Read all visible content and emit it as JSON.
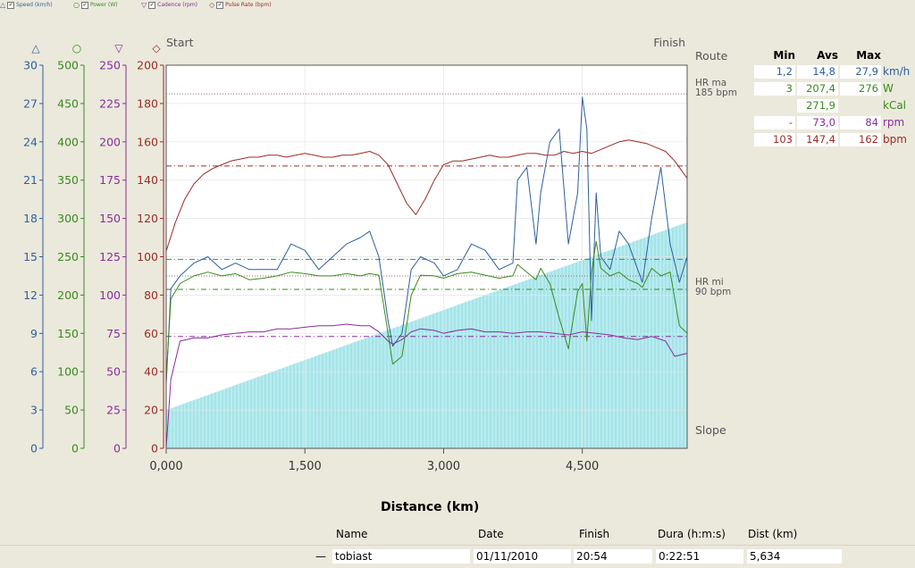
{
  "legend": [
    {
      "label": "Speed (km/h)",
      "color": "#2f5f9f",
      "symbol": "△"
    },
    {
      "label": "Power (W)",
      "color": "#3a8a1e",
      "symbol": "○"
    },
    {
      "label": "Cadence (rpm)",
      "color": "#8a2d9a",
      "symbol": "▽"
    },
    {
      "label": "Pulse Rate (bpm)",
      "color": "#9a2b26",
      "symbol": "◇"
    }
  ],
  "chart_data": {
    "type": "line",
    "xlabel": "Distance (km)",
    "x_ticks": [
      "0,000",
      "1,500",
      "3,000",
      "4,500"
    ],
    "x_tick_values": [
      0,
      1.5,
      3.0,
      4.5
    ],
    "xlim": [
      0,
      5.634
    ],
    "start_label": "Start",
    "finish_label": "Finish",
    "route_label": "Route",
    "slope_label": "Slope",
    "hr_max_label": "HR ma",
    "hr_max_value": "185 bpm",
    "hr_min_label": "HR mi",
    "hr_min_value": "90 bpm",
    "axes": [
      {
        "name": "speed",
        "unit": "km/h",
        "symbol": "△",
        "color": "#2f5f9f",
        "ticks": [
          "0",
          "3",
          "6",
          "9",
          "12",
          "15",
          "18",
          "21",
          "24",
          "27",
          "30"
        ],
        "ylim": [
          0,
          30
        ]
      },
      {
        "name": "power",
        "unit": "W",
        "symbol": "○",
        "color": "#3a8a1e",
        "ticks": [
          "0",
          "50",
          "100",
          "150",
          "200",
          "250",
          "300",
          "350",
          "400",
          "450",
          "500"
        ],
        "ylim": [
          0,
          500
        ]
      },
      {
        "name": "cadence",
        "unit": "rpm",
        "symbol": "▽",
        "color": "#8a2d9a",
        "ticks": [
          "0",
          "25",
          "50",
          "75",
          "100",
          "125",
          "150",
          "175",
          "200",
          "225",
          "250"
        ],
        "ylim": [
          0,
          250
        ]
      },
      {
        "name": "pulse",
        "unit": "bpm",
        "symbol": "◇",
        "color": "#9a2b26",
        "ticks": [
          "0",
          "20",
          "40",
          "60",
          "80",
          "100",
          "120",
          "140",
          "160",
          "180",
          "200"
        ],
        "ylim": [
          0,
          200
        ]
      }
    ],
    "series": [
      {
        "name": "Pulse Rate (bpm)",
        "color": "#9a2b26",
        "axis": "pulse",
        "x": [
          0,
          0.1,
          0.2,
          0.3,
          0.4,
          0.5,
          0.6,
          0.7,
          0.8,
          0.9,
          1.0,
          1.1,
          1.2,
          1.3,
          1.4,
          1.5,
          1.6,
          1.7,
          1.8,
          1.9,
          2.0,
          2.1,
          2.2,
          2.3,
          2.4,
          2.5,
          2.6,
          2.7,
          2.8,
          2.9,
          3.0,
          3.1,
          3.2,
          3.3,
          3.4,
          3.5,
          3.6,
          3.7,
          3.8,
          3.9,
          4.0,
          4.1,
          4.2,
          4.3,
          4.4,
          4.5,
          4.6,
          4.7,
          4.8,
          4.9,
          5.0,
          5.1,
          5.2,
          5.3,
          5.4,
          5.5,
          5.634
        ],
        "y": [
          103,
          118,
          130,
          138,
          143,
          146,
          148,
          150,
          151,
          152,
          152,
          153,
          153,
          152,
          153,
          154,
          153,
          152,
          152,
          153,
          153,
          154,
          155,
          153,
          148,
          138,
          128,
          122,
          130,
          140,
          148,
          150,
          150,
          151,
          152,
          153,
          152,
          152,
          153,
          154,
          154,
          153,
          153,
          155,
          154,
          155,
          154,
          156,
          158,
          160,
          161,
          160,
          159,
          157,
          155,
          150,
          141
        ]
      },
      {
        "name": "Speed (km/h)",
        "color": "#2f5f9f",
        "axis": "speed",
        "x": [
          0,
          0.05,
          0.15,
          0.3,
          0.45,
          0.6,
          0.75,
          0.9,
          1.05,
          1.2,
          1.35,
          1.5,
          1.65,
          1.8,
          1.95,
          2.1,
          2.2,
          2.3,
          2.4,
          2.45,
          2.55,
          2.65,
          2.75,
          2.9,
          3.0,
          3.15,
          3.3,
          3.45,
          3.6,
          3.75,
          3.8,
          3.9,
          4.0,
          4.05,
          4.15,
          4.25,
          4.35,
          4.45,
          4.5,
          4.55,
          4.6,
          4.65,
          4.7,
          4.8,
          4.9,
          5.0,
          5.1,
          5.15,
          5.25,
          5.35,
          5.45,
          5.55,
          5.634
        ],
        "y": [
          5,
          12.5,
          13.5,
          14.5,
          15,
          14,
          14.5,
          14,
          14,
          14,
          16,
          15.5,
          14,
          15,
          16,
          16.5,
          17,
          15,
          10,
          8,
          9,
          14,
          15,
          14.5,
          13.5,
          14,
          16,
          15.5,
          14,
          14.5,
          21,
          22,
          16,
          20,
          24,
          25,
          16,
          20,
          27.5,
          25,
          10,
          20,
          15,
          14,
          17,
          16,
          14,
          13,
          18,
          22,
          16,
          13,
          15
        ]
      },
      {
        "name": "Power (W)",
        "color": "#3a8a1e",
        "axis": "power",
        "x": [
          0,
          0.05,
          0.15,
          0.3,
          0.45,
          0.6,
          0.75,
          0.9,
          1.05,
          1.2,
          1.35,
          1.5,
          1.65,
          1.8,
          1.95,
          2.1,
          2.2,
          2.3,
          2.4,
          2.45,
          2.55,
          2.65,
          2.75,
          2.9,
          3.0,
          3.15,
          3.3,
          3.45,
          3.6,
          3.75,
          3.8,
          3.9,
          4.0,
          4.05,
          4.15,
          4.25,
          4.35,
          4.45,
          4.5,
          4.55,
          4.6,
          4.65,
          4.7,
          4.8,
          4.9,
          5.0,
          5.1,
          5.15,
          5.25,
          5.35,
          5.45,
          5.55,
          5.634
        ],
        "y": [
          90,
          195,
          215,
          225,
          230,
          225,
          228,
          220,
          222,
          225,
          230,
          228,
          225,
          225,
          228,
          225,
          228,
          226,
          150,
          110,
          120,
          200,
          226,
          225,
          222,
          228,
          230,
          226,
          222,
          225,
          240,
          230,
          220,
          235,
          215,
          170,
          130,
          205,
          215,
          140,
          230,
          270,
          235,
          225,
          230,
          220,
          215,
          210,
          235,
          225,
          230,
          160,
          150
        ]
      },
      {
        "name": "Cadence (rpm)",
        "color": "#8a2d9a",
        "axis": "cadence",
        "x": [
          0,
          0.05,
          0.15,
          0.3,
          0.45,
          0.6,
          0.75,
          0.9,
          1.05,
          1.2,
          1.35,
          1.5,
          1.65,
          1.8,
          1.95,
          2.1,
          2.2,
          2.3,
          2.4,
          2.45,
          2.55,
          2.65,
          2.75,
          2.9,
          3.0,
          3.15,
          3.3,
          3.45,
          3.6,
          3.75,
          3.9,
          4.05,
          4.2,
          4.35,
          4.5,
          4.65,
          4.8,
          4.95,
          5.1,
          5.25,
          5.4,
          5.5,
          5.634
        ],
        "y": [
          0,
          45,
          70,
          72,
          72,
          74,
          75,
          76,
          76,
          78,
          78,
          79,
          80,
          80,
          81,
          80,
          80,
          76,
          70,
          68,
          71,
          76,
          78,
          77,
          75,
          77,
          78,
          76,
          76,
          75,
          76,
          76,
          75,
          74,
          76,
          75,
          74,
          72,
          71,
          73,
          70,
          60,
          62
        ]
      }
    ],
    "slope_area": {
      "color": "#b7ecef",
      "x": [
        0,
        5.634
      ],
      "pulse_scale_y": [
        20,
        118
      ]
    },
    "reference_lines": {
      "pulse_max": 185,
      "pulse_avg": 147.4,
      "speed_avg": 14.8,
      "power_avg": 207.4,
      "cadence_avg": 73.0,
      "pulse_mid": 90
    }
  },
  "stats": {
    "headers": [
      "Min",
      "Avs",
      "Max"
    ],
    "rows": [
      {
        "min": "1,2",
        "avg": "14,8",
        "max": "27,9",
        "unit": "km/h",
        "color": "#2f5f9f"
      },
      {
        "min": "3",
        "avg": "207,4",
        "max": "276",
        "unit": "W",
        "color": "#3a8a1e"
      },
      {
        "min": "",
        "avg": "271,9",
        "max": "",
        "unit": "kCal",
        "color": "#3a8a1e"
      },
      {
        "min": "-",
        "avg": "73,0",
        "max": "84",
        "unit": "rpm",
        "color": "#8a2d9a"
      },
      {
        "min": "103",
        "avg": "147,4",
        "max": "162",
        "unit": "bpm",
        "color": "#9a2b26"
      }
    ]
  },
  "table": {
    "headers": {
      "name": "Name",
      "date": "Date",
      "finish": "Finish",
      "duration": "Dura (h:m:s)",
      "distance": "Dist (km)"
    },
    "row": {
      "marker": "—",
      "name": "tobiast",
      "date": "01/11/2010",
      "finish": "20:54",
      "duration": "0:22:51",
      "distance": "5,634"
    }
  }
}
